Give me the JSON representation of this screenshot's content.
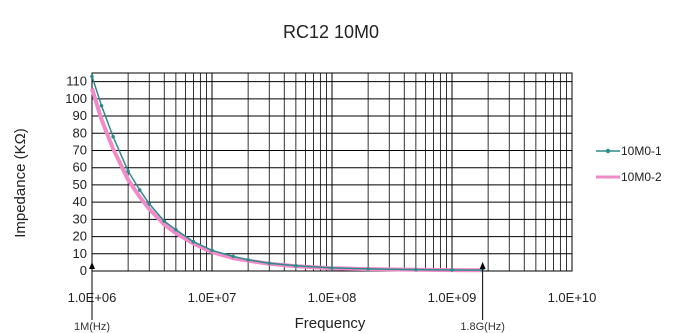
{
  "chart_data": {
    "type": "line",
    "title": "RC12 10M0",
    "xlabel": "Frequency",
    "ylabel": "Impedance (KΩ)",
    "x_scale": "log",
    "xlim": [
      1000000,
      10000000000
    ],
    "ylim": [
      0,
      115
    ],
    "x_ticks": [
      "1.0E+06",
      "1.0E+07",
      "1.0E+08",
      "1.0E+09",
      "1.0E+10"
    ],
    "y_ticks": [
      "0",
      "10",
      "20",
      "30",
      "40",
      "50",
      "60",
      "70",
      "80",
      "90",
      "100",
      "110"
    ],
    "grid": true,
    "legend_position": "right",
    "annotations": [
      {
        "text": "1M(Hz)",
        "x": 1000000
      },
      {
        "text": "1.8G(Hz)",
        "x": 1800000000
      }
    ],
    "series": [
      {
        "name": "10M0-1",
        "color": "#2e8b8b",
        "marker": "dot",
        "x": [
          1000000,
          1200000,
          1500000,
          2000000,
          2500000,
          3000000,
          4000000,
          5000000,
          7000000,
          10000000,
          15000000,
          20000000,
          30000000,
          50000000,
          100000000,
          200000000,
          500000000,
          1000000000,
          1800000000
        ],
        "values": [
          113,
          96,
          78,
          58,
          47,
          39,
          29,
          24,
          17,
          12,
          8.5,
          6.5,
          4.5,
          3,
          1.8,
          1.2,
          0.8,
          0.6,
          0.5
        ]
      },
      {
        "name": "10M0-2",
        "color": "#f08ac8",
        "marker": "none",
        "x": [
          1000000,
          1200000,
          1500000,
          2000000,
          2500000,
          3000000,
          4000000,
          5000000,
          7000000,
          10000000,
          15000000,
          20000000,
          30000000,
          50000000,
          100000000,
          200000000,
          500000000,
          1000000000,
          1800000000
        ],
        "values": [
          106,
          88,
          71,
          53,
          43,
          36,
          27,
          22,
          16,
          11,
          7.5,
          6,
          4.2,
          2.8,
          1.6,
          1.1,
          0.7,
          0.5,
          0.4
        ]
      }
    ]
  }
}
